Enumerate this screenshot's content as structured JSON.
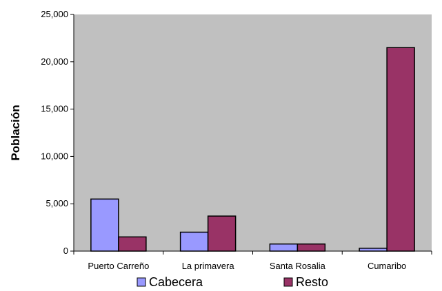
{
  "chart_data": {
    "type": "bar",
    "categories": [
      "Puerto Carreño",
      "La primavera",
      "Santa Rosalia",
      "Cumaribo"
    ],
    "series": [
      {
        "name": "Cabecera",
        "values": [
          5500,
          2000,
          750,
          300
        ],
        "color": "#9999ff"
      },
      {
        "name": "Resto",
        "values": [
          1500,
          3700,
          750,
          21500
        ],
        "color": "#993366"
      }
    ],
    "title": "",
    "xlabel": "",
    "ylabel": "Población",
    "ylim": [
      0,
      25000
    ],
    "yticks": [
      0,
      5000,
      10000,
      15000,
      20000,
      25000
    ],
    "ytick_labels": [
      "0",
      "5,000",
      "10,000",
      "15,000",
      "20,000",
      "25,000"
    ],
    "grid": false,
    "plot_background": "#c0c0c0",
    "legend": "bottom"
  }
}
